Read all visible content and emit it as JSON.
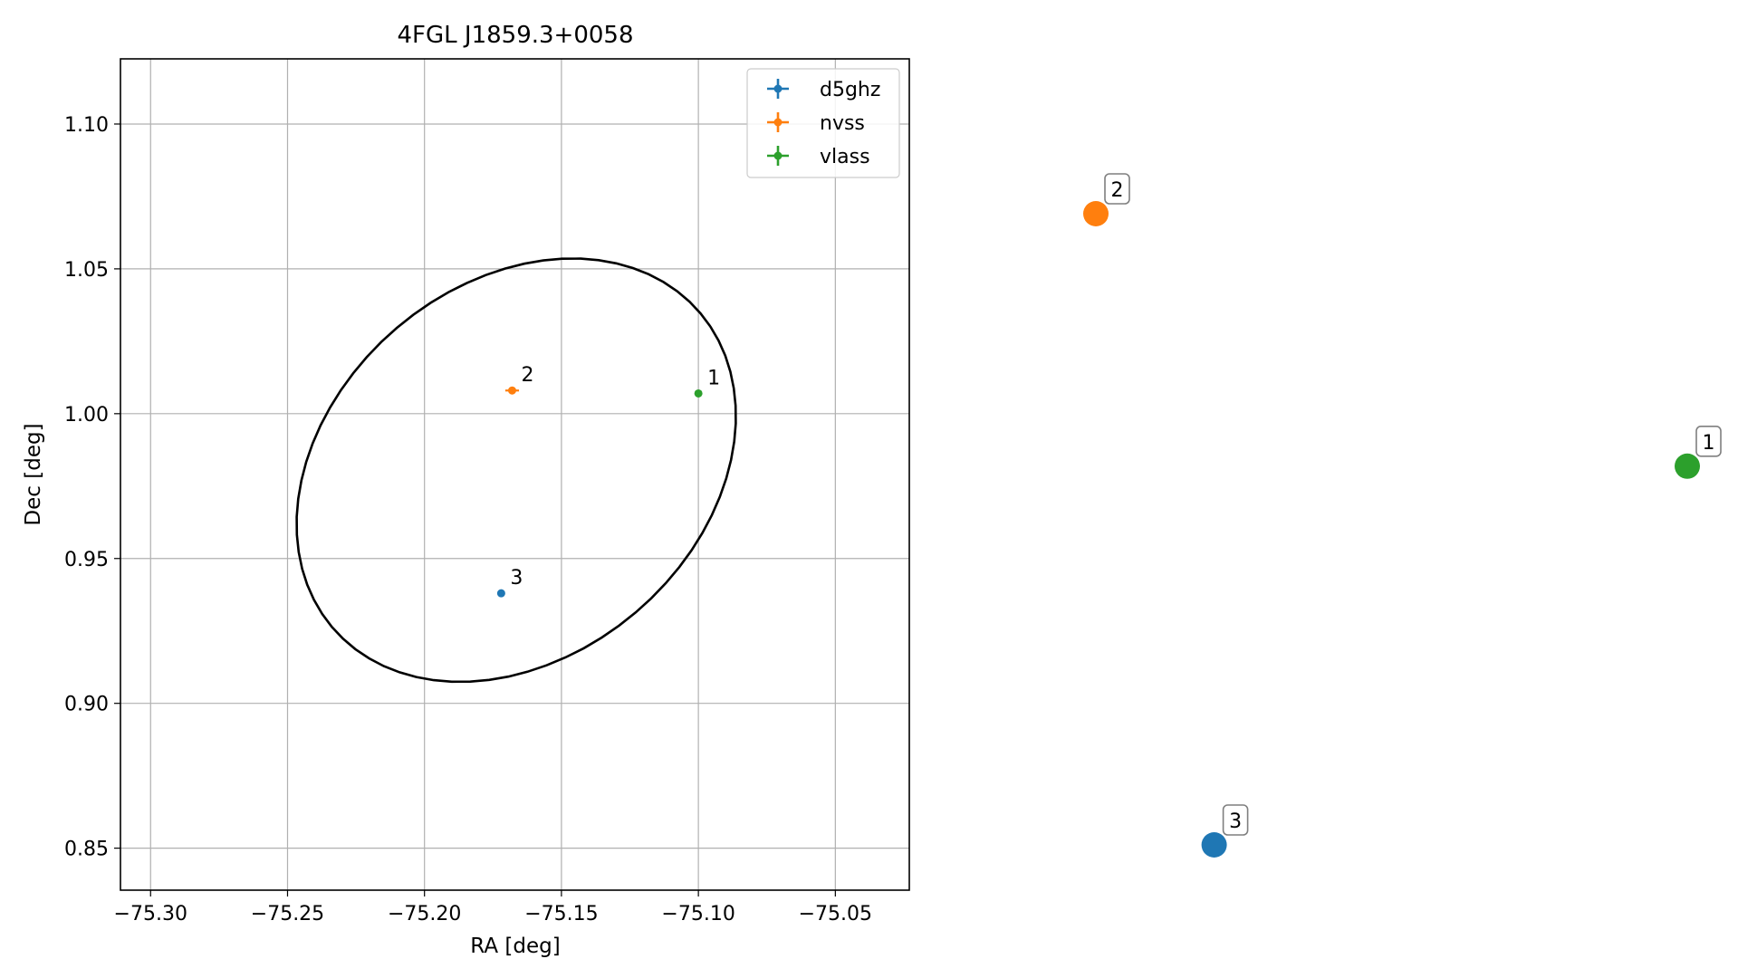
{
  "chart_data": [
    {
      "type": "scatter",
      "title": "4FGL J1859.3+0058",
      "xlabel": "RA [deg]",
      "ylabel": "Dec [deg]",
      "xlim": [
        -75.311,
        -75.023
      ],
      "ylim": [
        0.8355,
        1.1225
      ],
      "x_ticks": [
        -75.3,
        -75.25,
        -75.2,
        -75.15,
        -75.1,
        -75.05
      ],
      "x_tick_labels": [
        "−75.30",
        "−75.25",
        "−75.20",
        "−75.15",
        "−75.10",
        "−75.05"
      ],
      "y_ticks": [
        0.85,
        0.9,
        0.95,
        1.0,
        1.05,
        1.1
      ],
      "y_tick_labels": [
        "0.85",
        "0.90",
        "0.95",
        "1.00",
        "1.05",
        "1.10"
      ],
      "grid": true,
      "legend_position": "top-right",
      "series": [
        {
          "name": "d5ghz",
          "color": "#1f77b4",
          "points": [
            {
              "x": -75.172,
              "y": 0.938,
              "label": "3",
              "xerr": 0.0005,
              "yerr": 0.0005
            }
          ]
        },
        {
          "name": "nvss",
          "color": "#ff7f0e",
          "points": [
            {
              "x": -75.168,
              "y": 1.008,
              "label": "2",
              "xerr": 0.0025,
              "yerr": 0.0008
            }
          ]
        },
        {
          "name": "vlass",
          "color": "#2ca02c",
          "points": [
            {
              "x": -75.1,
              "y": 1.007,
              "label": "1",
              "xerr": 0.0005,
              "yerr": 0.0005
            }
          ]
        }
      ],
      "ellipse": {
        "center_x": -75.1665,
        "center_y": 0.9805,
        "semi_axis_ra": 0.0865,
        "semi_axis_dec": 0.0655,
        "angle_deg": 35,
        "color": "#000000"
      }
    },
    {
      "type": "scatter",
      "grid": false,
      "axes_visible": false,
      "points": [
        {
          "label": "1",
          "color": "#2ca02c",
          "x": 1.0,
          "y": 0.6
        },
        {
          "label": "2",
          "color": "#ff7f0e",
          "x": 0.0,
          "y": 1.0
        },
        {
          "label": "3",
          "color": "#1f77b4",
          "x": 0.2,
          "y": 0.0
        }
      ]
    }
  ]
}
